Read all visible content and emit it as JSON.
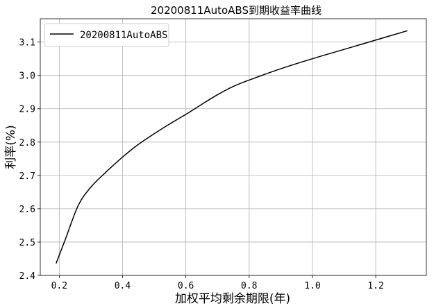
{
  "chart_data": {
    "type": "line",
    "title": "20200811AutoABS到期收益率曲线",
    "xlabel": "加权平均剩余期限(年)",
    "ylabel": "利率(%)",
    "xlim": [
      0.14,
      1.36
    ],
    "ylim": [
      2.4,
      3.17
    ],
    "xticks": [
      0.2,
      0.4,
      0.6,
      0.8,
      1.0,
      1.2
    ],
    "xtick_labels": [
      "0.2",
      "0.4",
      "0.6",
      "0.8",
      "1.0",
      "1.2"
    ],
    "yticks": [
      2.4,
      2.5,
      2.6,
      2.7,
      2.8,
      2.9,
      3.0,
      3.1
    ],
    "ytick_labels": [
      "2.4",
      "2.5",
      "2.6",
      "2.7",
      "2.8",
      "2.9",
      "3.0",
      "3.1"
    ],
    "grid": true,
    "legend_position": "top-left",
    "series": [
      {
        "name": "20200811AutoABS",
        "color": "#000000",
        "x": [
          0.19,
          0.22,
          0.26,
          0.3,
          0.35,
          0.4,
          0.45,
          0.5,
          0.55,
          0.6,
          0.65,
          0.7,
          0.75,
          0.8,
          0.9,
          1.0,
          1.1,
          1.2,
          1.3
        ],
        "y": [
          2.436,
          2.51,
          2.61,
          2.665,
          2.712,
          2.755,
          2.793,
          2.825,
          2.855,
          2.883,
          2.913,
          2.942,
          2.967,
          2.986,
          3.02,
          3.05,
          3.078,
          3.106,
          3.134
        ]
      }
    ]
  }
}
